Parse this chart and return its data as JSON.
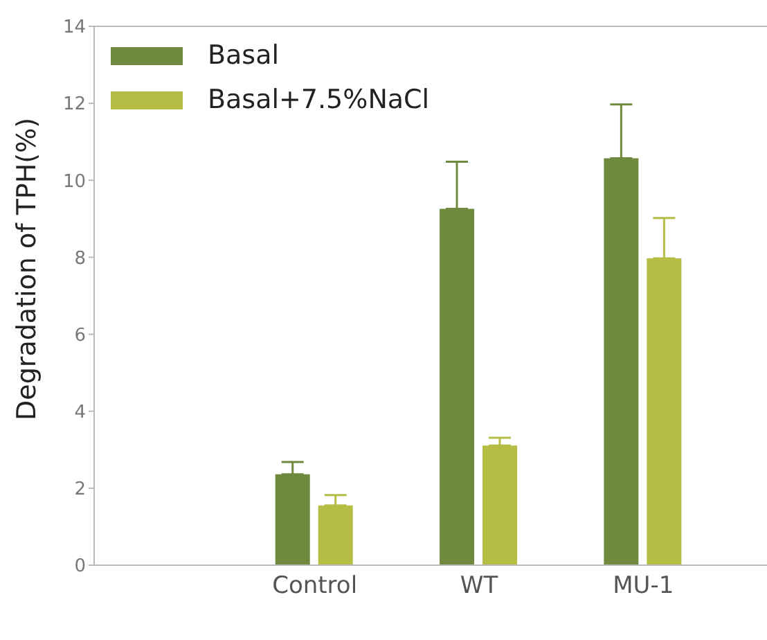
{
  "chart_data": {
    "type": "bar",
    "ylabel": "Degradation of TPH(%)",
    "categories": [
      "Control",
      "WT",
      "MU-1"
    ],
    "series": [
      {
        "name": "Basal",
        "color": "#6f8a3f",
        "values": [
          2.36,
          9.26,
          10.57
        ],
        "errors": [
          [
            2.36,
            2.68
          ],
          [
            9.26,
            10.48
          ],
          [
            10.57,
            11.97
          ]
        ]
      },
      {
        "name": "Basal+7.5%NaCl",
        "color": "#b5bd45",
        "values": [
          1.55,
          3.11,
          7.97
        ],
        "errors": [
          [
            1.55,
            1.82
          ],
          [
            3.11,
            3.31
          ],
          [
            7.97,
            9.02
          ]
        ]
      }
    ],
    "ylim": [
      0,
      14
    ],
    "yticks": [
      0,
      2,
      4,
      6,
      8,
      10,
      12,
      14
    ],
    "grid": false,
    "legend": "top left"
  }
}
